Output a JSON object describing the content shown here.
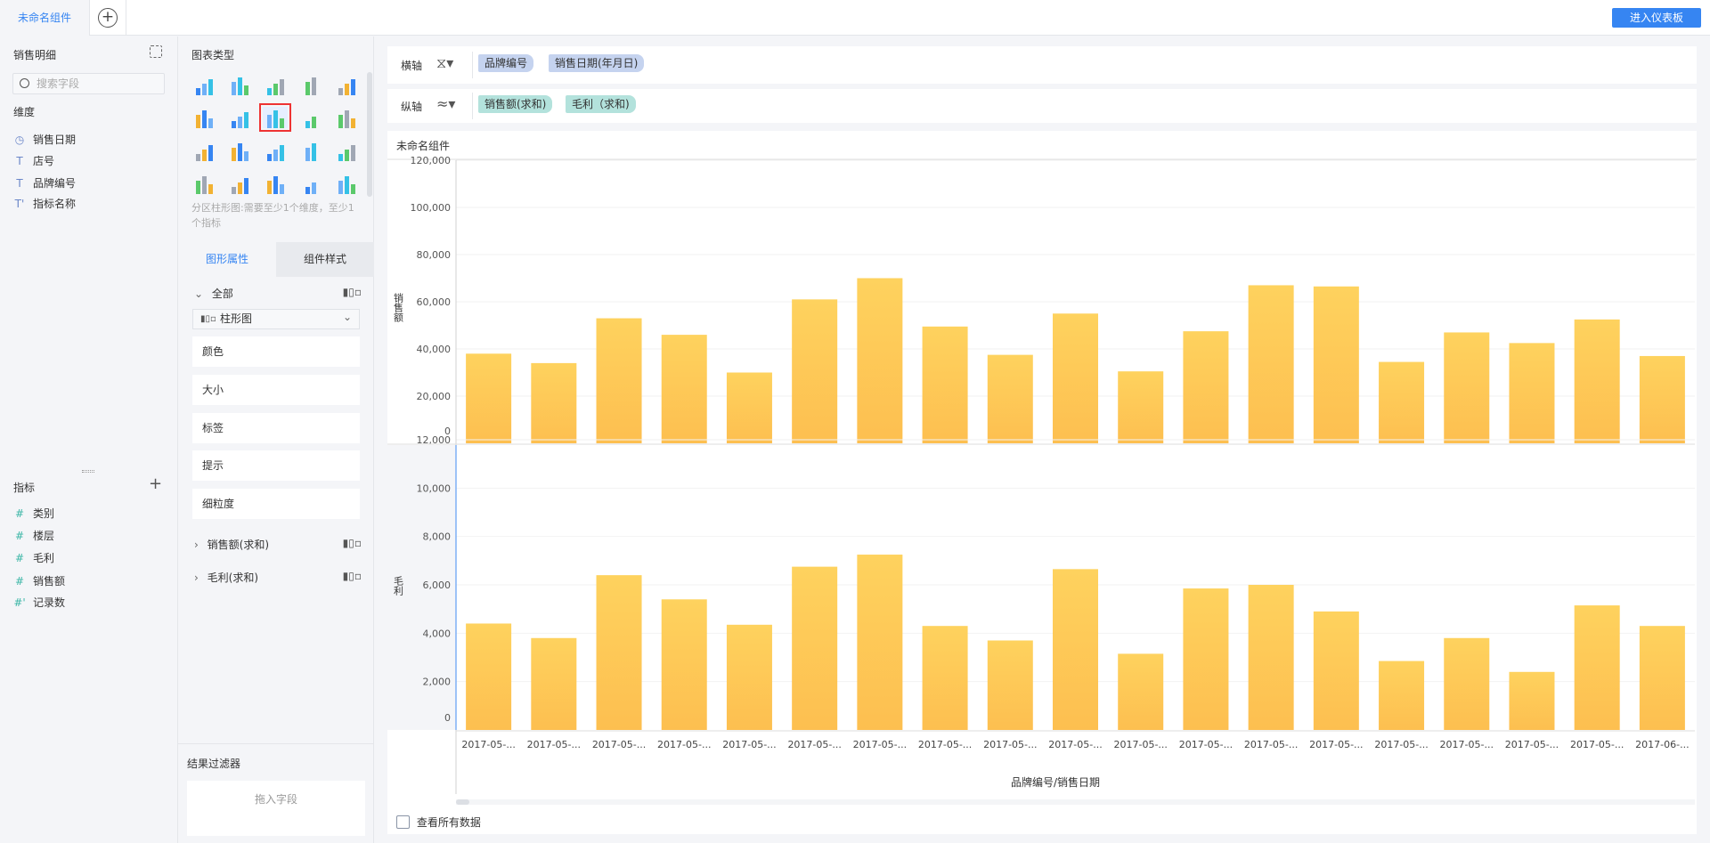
{
  "topbar": {
    "tab": "未命名组件",
    "add_icon": "+",
    "enter_button": "进入仪表板"
  },
  "left": {
    "title": "销售明细",
    "search_placeholder": "搜索字段",
    "dimensions_label": "维度",
    "dimensions": [
      {
        "icon": "T-clock",
        "label": "销售日期"
      },
      {
        "icon": "T",
        "label": "店号"
      },
      {
        "icon": "T",
        "label": "品牌编号"
      },
      {
        "icon": "T*",
        "label": "指标名称"
      }
    ],
    "measures_label": "指标",
    "add_icon": "+",
    "measures": [
      {
        "icon": "#",
        "label": "类别"
      },
      {
        "icon": "#",
        "label": "楼层"
      },
      {
        "icon": "#",
        "label": "毛利"
      },
      {
        "icon": "#",
        "label": "销售额"
      },
      {
        "icon": "#*",
        "label": "记录数"
      }
    ]
  },
  "chart_types": {
    "title": "图表类型",
    "hint": "分区柱形图:需要至少1个维度，至少1个指标",
    "selected_index": 7
  },
  "props": {
    "tab_active": "图形属性",
    "tab_other": "组件样式",
    "all_label": "全部",
    "chart_select": "柱形图",
    "boxes": [
      "颜色",
      "大小",
      "标签",
      "提示",
      "细粒度"
    ],
    "series": [
      "销售额(求和)",
      "毛利(求和)"
    ]
  },
  "filter": {
    "title": "结果过滤器",
    "drop_hint": "拖入字段"
  },
  "axes": {
    "x_label": "横轴",
    "y_label": "纵轴",
    "x_pills": [
      "品牌编号",
      "销售日期(年月日)"
    ],
    "y_pills": [
      "销售额(求和)",
      "毛利（求和)"
    ],
    "x_color": "#c5d3ef",
    "y_color": "#b3e2dc"
  },
  "card": {
    "title": "未命名组件",
    "show_all": "查看所有数据"
  },
  "chart_data": [
    {
      "type": "bar",
      "ylabel": "销售额",
      "ylim": [
        0,
        120000
      ],
      "yticks": [
        "0",
        "20,000",
        "40,000",
        "60,000",
        "80,000",
        "100,000",
        "120,000"
      ],
      "color": "#fdc956",
      "values": [
        38000,
        34000,
        53000,
        46000,
        30000,
        61000,
        70000,
        49500,
        37500,
        55000,
        30500,
        47500,
        67000,
        66500,
        34500,
        47000,
        42500,
        52500,
        37000
      ]
    },
    {
      "type": "bar",
      "ylabel": "毛利",
      "ylim": [
        0,
        12000
      ],
      "yticks": [
        "0",
        "2,000",
        "4,000",
        "6,000",
        "8,000",
        "10,000",
        "12,000"
      ],
      "color": "#fdc956",
      "values": [
        4400,
        3800,
        6400,
        5400,
        4350,
        6750,
        7250,
        4300,
        3700,
        6650,
        3150,
        5850,
        6000,
        4900,
        2850,
        3800,
        2400,
        5150,
        4300
      ]
    }
  ],
  "x_categories": [
    "2017-05-...",
    "2017-05-...",
    "2017-05-...",
    "2017-05-...",
    "2017-05-...",
    "2017-05-...",
    "2017-05-...",
    "2017-05-...",
    "2017-05-...",
    "2017-05-...",
    "2017-05-...",
    "2017-05-...",
    "2017-05-...",
    "2017-05-...",
    "2017-05-...",
    "2017-05-...",
    "2017-05-...",
    "2017-05-...",
    "2017-06-..."
  ],
  "x_title": "品牌编号/销售日期"
}
